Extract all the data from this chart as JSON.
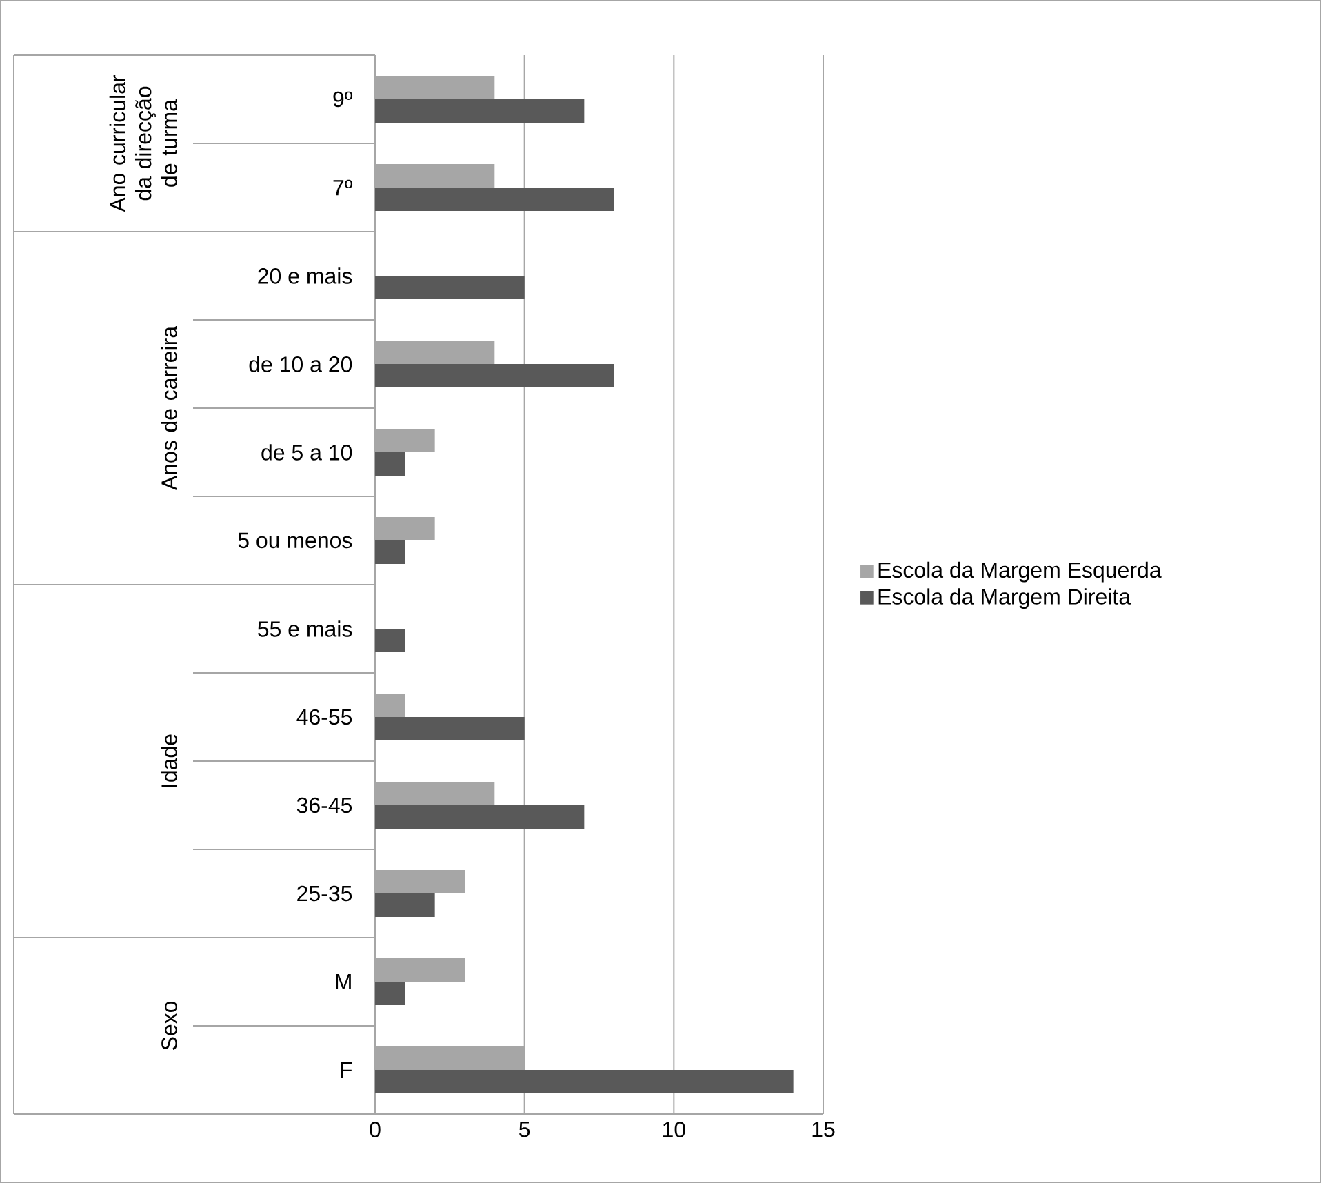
{
  "chart_data": {
    "type": "bar",
    "orientation": "horizontal",
    "categories": [
      "9º",
      "7º",
      "20 e mais",
      "de 10 a 20",
      "de 5 a 10",
      "5 ou menos",
      "55 e mais",
      "46-55",
      "36-45",
      "25-35",
      "M",
      "F"
    ],
    "series": [
      {
        "name": "Escola da Margem Esquerda",
        "color": "#a6a6a6",
        "values": [
          4,
          4,
          0,
          4,
          2,
          2,
          0,
          1,
          4,
          3,
          3,
          5
        ]
      },
      {
        "name": "Escola da Margem Direita",
        "color": "#595959",
        "values": [
          7,
          8,
          5,
          8,
          1,
          1,
          1,
          5,
          7,
          2,
          1,
          14
        ]
      }
    ],
    "xlim": [
      0,
      15
    ],
    "xticks": [
      0,
      5,
      10,
      15
    ],
    "grid": "x",
    "legend": "right",
    "annotations": [
      "Ano curricular da direcção de turma",
      "Anos de carreira",
      "Idade",
      "Sexo"
    ]
  }
}
